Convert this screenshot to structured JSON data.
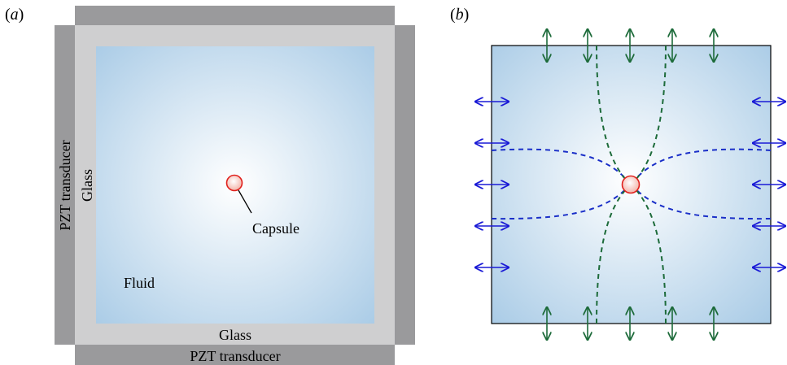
{
  "panel_a": {
    "label_open": "(",
    "label_letter": "a",
    "label_close": ")",
    "pzt_bottom_label": "PZT transducer",
    "pzt_left_label": "PZT transducer",
    "glass_bottom_label": "Glass",
    "glass_left_label": "Glass",
    "fluid_label": "Fluid",
    "capsule_label": "Capsule"
  },
  "panel_b": {
    "label_open": "(",
    "label_letter": "b",
    "label_close": ")"
  },
  "colors": {
    "pzt": "#9a9a9c",
    "glass": "#cfcfd0",
    "fluid_center": "#ffffff",
    "fluid_edge": "#a9cbe6",
    "capsule_stroke": "#e0201c",
    "capsule_fill": "#f7c4bc",
    "horizontal_arrows": "#1a1ad6",
    "vertical_arrows": "#1d6b3a",
    "horizontal_streamlines": "#1a2fc8",
    "vertical_streamlines": "#1d6b3a"
  }
}
